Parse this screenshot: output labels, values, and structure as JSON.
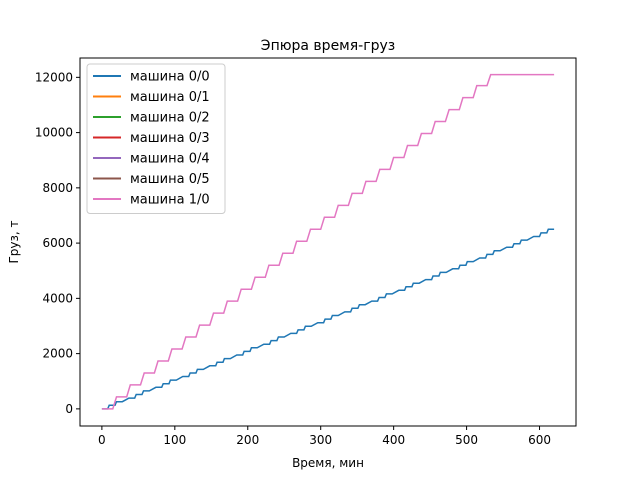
{
  "chart_data": {
    "type": "line",
    "title": "Эпюра время-груз",
    "xlabel": "Время, мин",
    "ylabel": "Груз, т",
    "xlim": [
      -30,
      650
    ],
    "ylim": [
      -620,
      12700
    ],
    "x_ticks": [
      0,
      100,
      200,
      300,
      400,
      500,
      600
    ],
    "y_ticks": [
      0,
      2000,
      4000,
      6000,
      8000,
      10000,
      12000
    ],
    "grid": false,
    "legend_position": "top-left",
    "step_shape": "stairs",
    "series": [
      {
        "name": "машина 0/0",
        "color": "#1f77b4",
        "points": [
          [
            0,
            0
          ],
          [
            8,
            0
          ],
          [
            10,
            130
          ],
          [
            18,
            130
          ],
          [
            20,
            260
          ],
          [
            28,
            260
          ],
          [
            37,
            390
          ],
          [
            45,
            390
          ],
          [
            47,
            520
          ],
          [
            55,
            520
          ],
          [
            57,
            650
          ],
          [
            65,
            650
          ],
          [
            74,
            780
          ],
          [
            82,
            780
          ],
          [
            84,
            910
          ],
          [
            92,
            910
          ],
          [
            94,
            1040
          ],
          [
            102,
            1040
          ],
          [
            111,
            1170
          ],
          [
            119,
            1170
          ],
          [
            121,
            1300
          ],
          [
            129,
            1300
          ],
          [
            131,
            1430
          ],
          [
            139,
            1430
          ],
          [
            148,
            1560
          ],
          [
            156,
            1560
          ],
          [
            158,
            1690
          ],
          [
            166,
            1690
          ],
          [
            168,
            1820
          ],
          [
            176,
            1820
          ],
          [
            185,
            1950
          ],
          [
            193,
            1950
          ],
          [
            195,
            2080
          ],
          [
            203,
            2080
          ],
          [
            205,
            2210
          ],
          [
            213,
            2210
          ],
          [
            222,
            2340
          ],
          [
            230,
            2340
          ],
          [
            232,
            2470
          ],
          [
            240,
            2470
          ],
          [
            242,
            2600
          ],
          [
            250,
            2600
          ],
          [
            259,
            2730
          ],
          [
            267,
            2730
          ],
          [
            269,
            2860
          ],
          [
            277,
            2860
          ],
          [
            279,
            2990
          ],
          [
            287,
            2990
          ],
          [
            296,
            3120
          ],
          [
            304,
            3120
          ],
          [
            306,
            3250
          ],
          [
            314,
            3250
          ],
          [
            316,
            3380
          ],
          [
            324,
            3380
          ],
          [
            333,
            3510
          ],
          [
            341,
            3510
          ],
          [
            343,
            3640
          ],
          [
            351,
            3640
          ],
          [
            353,
            3770
          ],
          [
            361,
            3770
          ],
          [
            370,
            3900
          ],
          [
            378,
            3900
          ],
          [
            380,
            4030
          ],
          [
            388,
            4030
          ],
          [
            390,
            4160
          ],
          [
            398,
            4160
          ],
          [
            407,
            4290
          ],
          [
            415,
            4290
          ],
          [
            417,
            4420
          ],
          [
            425,
            4420
          ],
          [
            427,
            4550
          ],
          [
            435,
            4550
          ],
          [
            444,
            4680
          ],
          [
            452,
            4680
          ],
          [
            454,
            4810
          ],
          [
            462,
            4810
          ],
          [
            464,
            4940
          ],
          [
            472,
            4940
          ],
          [
            481,
            5070
          ],
          [
            489,
            5070
          ],
          [
            491,
            5200
          ],
          [
            499,
            5200
          ],
          [
            501,
            5330
          ],
          [
            509,
            5330
          ],
          [
            518,
            5460
          ],
          [
            526,
            5460
          ],
          [
            528,
            5590
          ],
          [
            536,
            5590
          ],
          [
            538,
            5720
          ],
          [
            546,
            5720
          ],
          [
            555,
            5850
          ],
          [
            563,
            5850
          ],
          [
            565,
            5980
          ],
          [
            573,
            5980
          ],
          [
            575,
            6110
          ],
          [
            583,
            6110
          ],
          [
            592,
            6240
          ],
          [
            600,
            6240
          ],
          [
            602,
            6370
          ],
          [
            610,
            6370
          ],
          [
            612,
            6500
          ],
          [
            620,
            6500
          ]
        ]
      },
      {
        "name": "машина 0/1",
        "color": "#ff7f0e",
        "points": []
      },
      {
        "name": "машина 0/2",
        "color": "#2ca02c",
        "points": []
      },
      {
        "name": "машина 0/3",
        "color": "#d62728",
        "points": []
      },
      {
        "name": "машина 0/4",
        "color": "#9467bd",
        "points": []
      },
      {
        "name": "машина 0/5",
        "color": "#8c564b",
        "points": []
      },
      {
        "name": "машина 1/0",
        "color": "#e377c2",
        "points": [
          [
            0,
            0
          ],
          [
            15,
            0
          ],
          [
            20,
            433
          ],
          [
            34,
            433
          ],
          [
            39,
            866
          ],
          [
            53,
            866
          ],
          [
            58,
            1300
          ],
          [
            72,
            1300
          ],
          [
            77,
            1733
          ],
          [
            91,
            1733
          ],
          [
            96,
            2166
          ],
          [
            110,
            2166
          ],
          [
            115,
            2600
          ],
          [
            129,
            2600
          ],
          [
            134,
            3033
          ],
          [
            148,
            3033
          ],
          [
            153,
            3466
          ],
          [
            167,
            3466
          ],
          [
            172,
            3900
          ],
          [
            186,
            3900
          ],
          [
            191,
            4333
          ],
          [
            205,
            4333
          ],
          [
            210,
            4766
          ],
          [
            224,
            4766
          ],
          [
            229,
            5200
          ],
          [
            243,
            5200
          ],
          [
            248,
            5633
          ],
          [
            262,
            5633
          ],
          [
            267,
            6066
          ],
          [
            281,
            6066
          ],
          [
            286,
            6500
          ],
          [
            300,
            6500
          ],
          [
            305,
            6933
          ],
          [
            319,
            6933
          ],
          [
            324,
            7366
          ],
          [
            338,
            7366
          ],
          [
            343,
            7800
          ],
          [
            357,
            7800
          ],
          [
            362,
            8233
          ],
          [
            376,
            8233
          ],
          [
            381,
            8666
          ],
          [
            395,
            8666
          ],
          [
            400,
            9100
          ],
          [
            414,
            9100
          ],
          [
            419,
            9533
          ],
          [
            433,
            9533
          ],
          [
            438,
            9966
          ],
          [
            452,
            9966
          ],
          [
            457,
            10400
          ],
          [
            471,
            10400
          ],
          [
            476,
            10833
          ],
          [
            490,
            10833
          ],
          [
            495,
            11266
          ],
          [
            509,
            11266
          ],
          [
            514,
            11700
          ],
          [
            528,
            11700
          ],
          [
            533,
            12100
          ],
          [
            547,
            12100
          ],
          [
            552,
            12100
          ],
          [
            566,
            12100
          ],
          [
            571,
            12100
          ],
          [
            585,
            12100
          ],
          [
            590,
            12100
          ],
          [
            604,
            12100
          ],
          [
            609,
            12100
          ],
          [
            620,
            12100
          ]
        ]
      }
    ]
  }
}
